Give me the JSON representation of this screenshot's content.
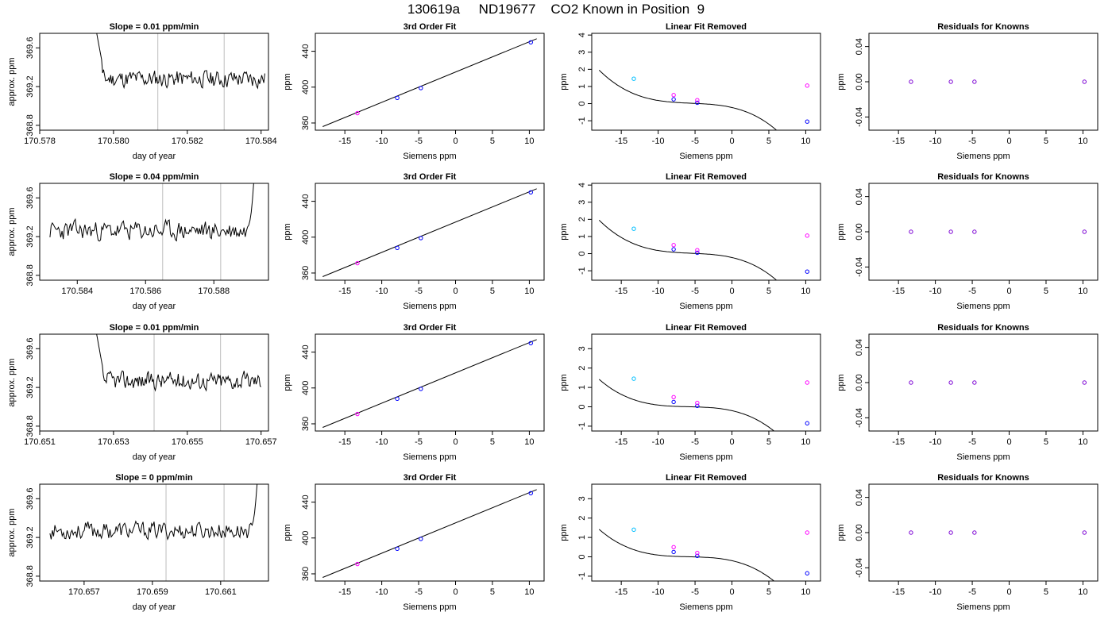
{
  "page": {
    "title": "130619a     ND19677    CO2 Known in Position  9"
  },
  "colors": {
    "axes": "#000000",
    "trace": "#000000",
    "fit_line": "#000000",
    "vline": "#c8c8c8",
    "point_primary": "#0000ff",
    "point_secondary": "#ff00ff",
    "point_cyan": "#00bfff",
    "point_purple": "#7b00d4"
  },
  "chart_data": [
    {
      "type": "line",
      "title": "Slope =  0.01  ppm/min",
      "xlabel": "day of year",
      "ylabel": "approx. ppm",
      "xlim": [
        170.578,
        170.5842
      ],
      "ylim": [
        368.75,
        369.75
      ],
      "xticks": [
        "170.578",
        "170.580",
        "170.582",
        "170.584"
      ],
      "xtick_values": [
        170.578,
        170.58,
        170.582,
        170.584
      ],
      "yticks": [
        "368.8",
        "369.2",
        "369.6"
      ],
      "ytick_values": [
        368.8,
        369.2,
        369.6
      ],
      "vlines": [
        170.5812,
        170.583
      ],
      "trace_start": 170.5794,
      "trace_end": 170.5841,
      "trace_level": 369.28,
      "trace_noise": 0.045,
      "trace_seed": 11,
      "spike": "start",
      "spike_end": 170.5797,
      "spike_top": 369.9
    },
    {
      "type": "scatter",
      "title": "3rd Order Fit",
      "xlabel": "Siemens ppm",
      "ylabel": "ppm",
      "xlim": [
        -19,
        12
      ],
      "ylim": [
        352,
        460
      ],
      "xticks": [
        "-15",
        "-10",
        "-5",
        "0",
        "5",
        "10"
      ],
      "xtick_values": [
        -15,
        -10,
        -5,
        0,
        5,
        10
      ],
      "yticks": [
        "360",
        "400",
        "440"
      ],
      "ytick_values": [
        360,
        400,
        440
      ],
      "curve": {
        "kind": "line",
        "x0": -18,
        "y0": 356,
        "x1": 11,
        "y1": 454
      },
      "points": [
        {
          "x": -13.3,
          "y": 371,
          "color": "point_secondary"
        },
        {
          "x": -7.9,
          "y": 388,
          "color": "point_primary"
        },
        {
          "x": -4.7,
          "y": 399,
          "color": "point_primary"
        },
        {
          "x": 10.2,
          "y": 450,
          "color": "point_primary"
        }
      ]
    },
    {
      "type": "scatter",
      "title": "Linear Fit Removed",
      "xlabel": "Siemens ppm",
      "ylabel": "ppm",
      "xlim": [
        -19,
        12
      ],
      "ylim": [
        -1.55,
        4.1
      ],
      "xticks": [
        "-15",
        "-10",
        "-5",
        "0",
        "5",
        "10"
      ],
      "xtick_values": [
        -15,
        -10,
        -5,
        0,
        5,
        10
      ],
      "yticks": [
        "-1",
        "0",
        "1",
        "2",
        "3",
        "4"
      ],
      "ytick_values": [
        -1,
        0,
        1,
        2,
        3,
        4
      ],
      "curve": {
        "kind": "cubic",
        "a": -0.00088,
        "b": -0.0146,
        "c": -0.099,
        "d": -0.227
      },
      "points": [
        {
          "x": -13.3,
          "y": 1.45,
          "color": "point_cyan"
        },
        {
          "x": -7.9,
          "y": 0.25,
          "color": "point_primary"
        },
        {
          "x": -4.7,
          "y": 0.05,
          "color": "point_primary"
        },
        {
          "x": 10.2,
          "y": -1.05,
          "color": "point_primary"
        },
        {
          "x": -7.9,
          "y": 0.5,
          "color": "point_secondary"
        },
        {
          "x": -4.7,
          "y": 0.2,
          "color": "point_secondary"
        },
        {
          "x": 10.2,
          "y": 1.05,
          "color": "point_secondary"
        }
      ]
    },
    {
      "type": "scatter",
      "title": "Residuals for Knowns",
      "xlabel": "Siemens ppm",
      "ylabel": "ppm",
      "xlim": [
        -19,
        12
      ],
      "ylim": [
        -0.055,
        0.055
      ],
      "xticks": [
        "-15",
        "-10",
        "-5",
        "0",
        "5",
        "10"
      ],
      "xtick_values": [
        -15,
        -10,
        -5,
        0,
        5,
        10
      ],
      "yticks": [
        "-0.04",
        "0.00",
        "0.04"
      ],
      "ytick_values": [
        -0.04,
        0,
        0.04
      ],
      "points": [
        {
          "x": -13.3,
          "y": 0,
          "color": "point_purple"
        },
        {
          "x": -7.9,
          "y": 0,
          "color": "point_purple"
        },
        {
          "x": -4.7,
          "y": 0,
          "color": "point_purple"
        },
        {
          "x": 10.2,
          "y": 0,
          "color": "point_purple"
        }
      ]
    },
    {
      "type": "line",
      "title": "Slope =  0.04  ppm/min",
      "xlabel": "day of year",
      "ylabel": "approx. ppm",
      "xlim": [
        170.5829,
        170.5896
      ],
      "ylim": [
        368.75,
        369.75
      ],
      "xticks": [
        "170.584",
        "170.586",
        "170.588"
      ],
      "xtick_values": [
        170.584,
        170.586,
        170.588
      ],
      "yticks": [
        "368.8",
        "369.2",
        "369.6"
      ],
      "ytick_values": [
        368.8,
        369.2,
        369.6
      ],
      "vlines": [
        170.5865,
        170.5882
      ],
      "trace_start": 170.5832,
      "trace_end": 170.5892,
      "trace_level": 369.26,
      "trace_noise": 0.05,
      "trace_seed": 23,
      "spike": "end",
      "spike_start": 170.589,
      "spike_top": 369.9
    },
    {
      "type": "scatter",
      "title": "3rd Order Fit",
      "xlabel": "Siemens ppm",
      "ylabel": "ppm",
      "xlim": [
        -19,
        12
      ],
      "ylim": [
        352,
        460
      ],
      "xticks": [
        "-15",
        "-10",
        "-5",
        "0",
        "5",
        "10"
      ],
      "xtick_values": [
        -15,
        -10,
        -5,
        0,
        5,
        10
      ],
      "yticks": [
        "360",
        "400",
        "440"
      ],
      "ytick_values": [
        360,
        400,
        440
      ],
      "curve": {
        "kind": "line",
        "x0": -18,
        "y0": 356,
        "x1": 11,
        "y1": 454
      },
      "points": [
        {
          "x": -13.3,
          "y": 371,
          "color": "point_secondary"
        },
        {
          "x": -7.9,
          "y": 388,
          "color": "point_primary"
        },
        {
          "x": -4.7,
          "y": 399,
          "color": "point_primary"
        },
        {
          "x": 10.2,
          "y": 450,
          "color": "point_primary"
        }
      ]
    },
    {
      "type": "scatter",
      "title": "Linear Fit Removed",
      "xlabel": "Siemens ppm",
      "ylabel": "ppm",
      "xlim": [
        -19,
        12
      ],
      "ylim": [
        -1.55,
        4.1
      ],
      "xticks": [
        "-15",
        "-10",
        "-5",
        "0",
        "5",
        "10"
      ],
      "xtick_values": [
        -15,
        -10,
        -5,
        0,
        5,
        10
      ],
      "yticks": [
        "-1",
        "0",
        "1",
        "2",
        "3",
        "4"
      ],
      "ytick_values": [
        -1,
        0,
        1,
        2,
        3,
        4
      ],
      "curve": {
        "kind": "cubic",
        "a": -0.00088,
        "b": -0.0146,
        "c": -0.099,
        "d": -0.227
      },
      "points": [
        {
          "x": -13.3,
          "y": 1.45,
          "color": "point_cyan"
        },
        {
          "x": -7.9,
          "y": 0.25,
          "color": "point_primary"
        },
        {
          "x": -4.7,
          "y": 0.05,
          "color": "point_primary"
        },
        {
          "x": 10.2,
          "y": -1.05,
          "color": "point_primary"
        },
        {
          "x": -7.9,
          "y": 0.5,
          "color": "point_secondary"
        },
        {
          "x": -4.7,
          "y": 0.2,
          "color": "point_secondary"
        },
        {
          "x": 10.2,
          "y": 1.05,
          "color": "point_secondary"
        }
      ]
    },
    {
      "type": "scatter",
      "title": "Residuals for Knowns",
      "xlabel": "Siemens ppm",
      "ylabel": "ppm",
      "xlim": [
        -19,
        12
      ],
      "ylim": [
        -0.055,
        0.055
      ],
      "xticks": [
        "-15",
        "-10",
        "-5",
        "0",
        "5",
        "10"
      ],
      "xtick_values": [
        -15,
        -10,
        -5,
        0,
        5,
        10
      ],
      "yticks": [
        "-0.04",
        "0.00",
        "0.04"
      ],
      "ytick_values": [
        -0.04,
        0,
        0.04
      ],
      "points": [
        {
          "x": -13.3,
          "y": 0,
          "color": "point_purple"
        },
        {
          "x": -7.9,
          "y": 0,
          "color": "point_purple"
        },
        {
          "x": -4.7,
          "y": 0,
          "color": "point_purple"
        },
        {
          "x": 10.2,
          "y": 0,
          "color": "point_purple"
        }
      ]
    },
    {
      "type": "line",
      "title": "Slope =  0.01  ppm/min",
      "xlabel": "day of year",
      "ylabel": "approx. ppm",
      "xlim": [
        170.651,
        170.6572
      ],
      "ylim": [
        368.75,
        369.75
      ],
      "xticks": [
        "170.651",
        "170.653",
        "170.655",
        "170.657"
      ],
      "xtick_values": [
        170.651,
        170.653,
        170.655,
        170.657
      ],
      "yticks": [
        "368.8",
        "369.2",
        "369.6"
      ],
      "ytick_values": [
        368.8,
        369.2,
        369.6
      ],
      "vlines": [
        170.6541,
        170.6559
      ],
      "trace_start": 170.6524,
      "trace_end": 170.657,
      "trace_level": 369.27,
      "trace_noise": 0.045,
      "trace_seed": 37,
      "spike": "start",
      "spike_end": 170.6527,
      "spike_top": 369.9
    },
    {
      "type": "scatter",
      "title": "3rd Order Fit",
      "xlabel": "Siemens ppm",
      "ylabel": "ppm",
      "xlim": [
        -19,
        12
      ],
      "ylim": [
        352,
        460
      ],
      "xticks": [
        "-15",
        "-10",
        "-5",
        "0",
        "5",
        "10"
      ],
      "xtick_values": [
        -15,
        -10,
        -5,
        0,
        5,
        10
      ],
      "yticks": [
        "360",
        "400",
        "440"
      ],
      "ytick_values": [
        360,
        400,
        440
      ],
      "curve": {
        "kind": "line",
        "x0": -18,
        "y0": 356,
        "x1": 11,
        "y1": 454
      },
      "points": [
        {
          "x": -13.3,
          "y": 371,
          "color": "point_secondary"
        },
        {
          "x": -7.9,
          "y": 388,
          "color": "point_primary"
        },
        {
          "x": -4.7,
          "y": 399,
          "color": "point_primary"
        },
        {
          "x": 10.2,
          "y": 450,
          "color": "point_primary"
        }
      ]
    },
    {
      "type": "scatter",
      "title": "Linear Fit Removed",
      "xlabel": "Siemens ppm",
      "ylabel": "ppm",
      "xlim": [
        -19,
        12
      ],
      "ylim": [
        -1.25,
        3.75
      ],
      "xticks": [
        "-15",
        "-10",
        "-5",
        "0",
        "5",
        "10"
      ],
      "xtick_values": [
        -15,
        -10,
        -5,
        0,
        5,
        10
      ],
      "yticks": [
        "-1",
        "0",
        "1",
        "2",
        "3"
      ],
      "ytick_values": [
        -1,
        0,
        1,
        2,
        3
      ],
      "curve": {
        "kind": "cubic",
        "a": -0.00074,
        "b": -0.0131,
        "c": -0.086,
        "d": -0.2
      },
      "points": [
        {
          "x": -13.3,
          "y": 1.45,
          "color": "point_cyan"
        },
        {
          "x": -7.9,
          "y": 0.25,
          "color": "point_primary"
        },
        {
          "x": -4.7,
          "y": 0.05,
          "color": "point_primary"
        },
        {
          "x": 10.2,
          "y": -0.85,
          "color": "point_primary"
        },
        {
          "x": -7.9,
          "y": 0.5,
          "color": "point_secondary"
        },
        {
          "x": -4.7,
          "y": 0.2,
          "color": "point_secondary"
        },
        {
          "x": 10.2,
          "y": 1.25,
          "color": "point_secondary"
        }
      ]
    },
    {
      "type": "scatter",
      "title": "Residuals for Knowns",
      "xlabel": "Siemens ppm",
      "ylabel": "ppm",
      "xlim": [
        -19,
        12
      ],
      "ylim": [
        -0.055,
        0.055
      ],
      "xticks": [
        "-15",
        "-10",
        "-5",
        "0",
        "5",
        "10"
      ],
      "xtick_values": [
        -15,
        -10,
        -5,
        0,
        5,
        10
      ],
      "yticks": [
        "-0.04",
        "0.00",
        "0.04"
      ],
      "ytick_values": [
        -0.04,
        0,
        0.04
      ],
      "points": [
        {
          "x": -13.3,
          "y": 0,
          "color": "point_purple"
        },
        {
          "x": -7.9,
          "y": 0,
          "color": "point_purple"
        },
        {
          "x": -4.7,
          "y": 0,
          "color": "point_purple"
        },
        {
          "x": 10.2,
          "y": 0,
          "color": "point_purple"
        }
      ]
    },
    {
      "type": "line",
      "title": "Slope =  0  ppm/min",
      "xlabel": "day of year",
      "ylabel": "approx. ppm",
      "xlim": [
        170.6557,
        170.6624
      ],
      "ylim": [
        368.75,
        369.75
      ],
      "xticks": [
        "170.657",
        "170.659",
        "170.661"
      ],
      "xtick_values": [
        170.657,
        170.659,
        170.661
      ],
      "yticks": [
        "368.8",
        "369.2",
        "369.6"
      ],
      "ytick_values": [
        368.8,
        369.2,
        369.6
      ],
      "vlines": [
        170.6594,
        170.6611
      ],
      "trace_start": 170.656,
      "trace_end": 170.6621,
      "trace_level": 369.27,
      "trace_noise": 0.045,
      "trace_seed": 53,
      "spike": "end",
      "spike_start": 170.6619,
      "spike_top": 369.9
    },
    {
      "type": "scatter",
      "title": "3rd Order Fit",
      "xlabel": "Siemens ppm",
      "ylabel": "ppm",
      "xlim": [
        -19,
        12
      ],
      "ylim": [
        352,
        460
      ],
      "xticks": [
        "-15",
        "-10",
        "-5",
        "0",
        "5",
        "10"
      ],
      "xtick_values": [
        -15,
        -10,
        -5,
        0,
        5,
        10
      ],
      "yticks": [
        "360",
        "400",
        "440"
      ],
      "ytick_values": [
        360,
        400,
        440
      ],
      "curve": {
        "kind": "line",
        "x0": -18,
        "y0": 356,
        "x1": 11,
        "y1": 454
      },
      "points": [
        {
          "x": -13.3,
          "y": 371,
          "color": "point_secondary"
        },
        {
          "x": -7.9,
          "y": 388,
          "color": "point_primary"
        },
        {
          "x": -4.7,
          "y": 399,
          "color": "point_primary"
        },
        {
          "x": 10.2,
          "y": 450,
          "color": "point_primary"
        }
      ]
    },
    {
      "type": "scatter",
      "title": "Linear Fit Removed",
      "xlabel": "Siemens ppm",
      "ylabel": "ppm",
      "xlim": [
        -19,
        12
      ],
      "ylim": [
        -1.25,
        3.75
      ],
      "xticks": [
        "-15",
        "-10",
        "-5",
        "0",
        "5",
        "10"
      ],
      "xtick_values": [
        -15,
        -10,
        -5,
        0,
        5,
        10
      ],
      "yticks": [
        "-1",
        "0",
        "1",
        "2",
        "3"
      ],
      "ytick_values": [
        -1,
        0,
        1,
        2,
        3
      ],
      "curve": {
        "kind": "cubic",
        "a": -0.00074,
        "b": -0.0131,
        "c": -0.086,
        "d": -0.2
      },
      "points": [
        {
          "x": -13.3,
          "y": 1.4,
          "color": "point_cyan"
        },
        {
          "x": -7.9,
          "y": 0.25,
          "color": "point_primary"
        },
        {
          "x": -4.7,
          "y": 0.05,
          "color": "point_primary"
        },
        {
          "x": 10.2,
          "y": -0.85,
          "color": "point_primary"
        },
        {
          "x": -7.9,
          "y": 0.5,
          "color": "point_secondary"
        },
        {
          "x": -4.7,
          "y": 0.2,
          "color": "point_secondary"
        },
        {
          "x": 10.2,
          "y": 1.25,
          "color": "point_secondary"
        }
      ]
    },
    {
      "type": "scatter",
      "title": "Residuals for Knowns",
      "xlabel": "Siemens ppm",
      "ylabel": "ppm",
      "xlim": [
        -19,
        12
      ],
      "ylim": [
        -0.055,
        0.055
      ],
      "xticks": [
        "-15",
        "-10",
        "-5",
        "0",
        "5",
        "10"
      ],
      "xtick_values": [
        -15,
        -10,
        -5,
        0,
        5,
        10
      ],
      "yticks": [
        "-0.04",
        "0.00",
        "0.04"
      ],
      "ytick_values": [
        -0.04,
        0,
        0.04
      ],
      "points": [
        {
          "x": -13.3,
          "y": 0,
          "color": "point_purple"
        },
        {
          "x": -7.9,
          "y": 0,
          "color": "point_purple"
        },
        {
          "x": -4.7,
          "y": 0,
          "color": "point_purple"
        },
        {
          "x": 10.2,
          "y": 0,
          "color": "point_purple"
        }
      ]
    }
  ]
}
